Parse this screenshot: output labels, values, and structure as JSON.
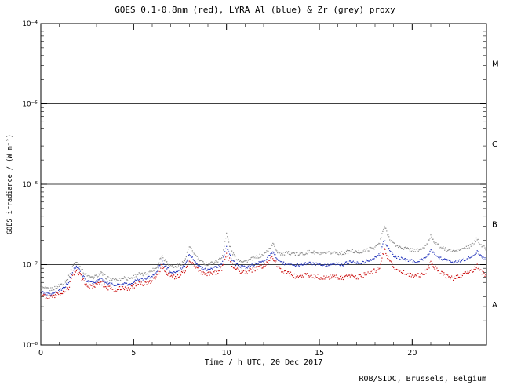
{
  "window": {
    "footer": "ROB/SIDC, Brussels, Belgium"
  },
  "chart_data": {
    "type": "scatter",
    "title": "GOES 0.1-0.8nm (red), LYRA Al (blue) & Zr (grey) proxy",
    "xlabel": "Time / h UTC, 20 Dec 2017",
    "ylabel": "GOES irradiance / (W m⁻²)",
    "x_range": [
      0,
      24
    ],
    "x_major_ticks": [
      0,
      5,
      10,
      15,
      20
    ],
    "x_minor_tick_step": 1,
    "y_scale": "log",
    "y_exp_range": [
      -8,
      -4
    ],
    "y_tick_labels": [
      "10⁻⁸",
      "10⁻⁷",
      "10⁻⁶",
      "10⁻⁵",
      "10⁻⁴"
    ],
    "hlines_wm2": [
      1e-07,
      1e-06,
      1e-05
    ],
    "flare_class_labels": [
      {
        "label": "M",
        "decade_mid_exp": -4.5
      },
      {
        "label": "C",
        "decade_mid_exp": -5.5
      },
      {
        "label": "B",
        "decade_mid_exp": -6.5
      },
      {
        "label": "A",
        "decade_mid_exp": -7.5
      }
    ],
    "legend_position": "none",
    "grid": "off",
    "sample_start_h": 0,
    "sample_step_h": 0.25,
    "value_unit": "1e-8 W m-2",
    "series": [
      {
        "name": "GOES 0.1-0.8nm",
        "color": "#cc1111",
        "noise_dex": 0.03,
        "values_1e8": [
          4.2,
          4.0,
          3.9,
          4.1,
          4.3,
          4.6,
          5.2,
          7.8,
          8.3,
          6.4,
          5.6,
          5.2,
          5.6,
          6.0,
          5.3,
          5.0,
          4.8,
          5.0,
          5.2,
          5.0,
          5.4,
          5.8,
          5.6,
          6.0,
          6.4,
          7.0,
          9.5,
          8.2,
          7.2,
          7.0,
          7.6,
          8.4,
          11.5,
          10.0,
          8.4,
          7.8,
          7.5,
          7.8,
          8.2,
          9.0,
          13.5,
          10.5,
          8.8,
          8.2,
          8.0,
          8.4,
          8.8,
          9.2,
          9.6,
          11.0,
          12.5,
          9.5,
          8.2,
          7.8,
          7.5,
          7.2,
          7.0,
          7.3,
          7.5,
          7.2,
          7.0,
          6.8,
          7.0,
          7.2,
          7.0,
          6.8,
          7.2,
          7.4,
          7.0,
          7.2,
          7.6,
          8.0,
          8.4,
          9.5,
          15.5,
          11.5,
          9.2,
          8.4,
          8.0,
          7.6,
          7.4,
          7.2,
          7.5,
          8.2,
          10.5,
          9.0,
          8.0,
          7.4,
          7.0,
          6.8,
          7.0,
          7.4,
          7.8,
          8.4,
          9.5,
          8.0,
          7.2
        ]
      },
      {
        "name": "LYRA Al proxy",
        "color": "#2233bb",
        "noise_dex": 0.018,
        "values_1e8": [
          4.6,
          4.4,
          4.3,
          4.5,
          4.8,
          5.2,
          6.0,
          8.8,
          9.4,
          7.2,
          6.3,
          5.9,
          6.3,
          6.8,
          6.0,
          5.7,
          5.5,
          5.7,
          5.9,
          5.7,
          6.1,
          6.6,
          6.4,
          6.8,
          7.3,
          8.0,
          11.0,
          9.4,
          8.2,
          8.0,
          8.7,
          9.6,
          13.5,
          11.5,
          9.6,
          8.9,
          8.6,
          8.9,
          9.4,
          10.3,
          16.5,
          12.0,
          10.1,
          9.4,
          9.2,
          9.6,
          10.1,
          10.6,
          11.0,
          12.6,
          14.5,
          11.5,
          10.5,
          10.2,
          10.0,
          9.8,
          9.8,
          10.2,
          10.5,
          10.2,
          10.0,
          9.8,
          10.0,
          10.4,
          10.2,
          10.0,
          10.5,
          10.8,
          10.4,
          10.6,
          11.0,
          11.5,
          12.0,
          13.5,
          20.0,
          15.5,
          13.0,
          12.2,
          11.8,
          11.4,
          11.2,
          11.0,
          11.4,
          12.2,
          15.0,
          13.0,
          12.0,
          11.4,
          11.0,
          10.8,
          11.0,
          11.5,
          12.0,
          12.8,
          14.5,
          12.5,
          11.5
        ]
      },
      {
        "name": "LYRA Zr proxy",
        "color": "#8c8c8c",
        "noise_dex": 0.022,
        "values_1e8": [
          5.2,
          5.0,
          4.9,
          5.1,
          5.5,
          6.0,
          7.0,
          10.0,
          10.8,
          8.3,
          7.2,
          6.8,
          7.2,
          7.8,
          7.0,
          6.6,
          6.4,
          6.6,
          6.9,
          6.6,
          7.1,
          7.7,
          7.4,
          7.9,
          8.5,
          9.3,
          13.0,
          11.0,
          9.6,
          9.3,
          10.1,
          11.2,
          16.5,
          14.0,
          11.5,
          10.5,
          10.1,
          10.5,
          11.0,
          12.2,
          24.0,
          14.8,
          12.2,
          11.3,
          11.0,
          11.5,
          12.1,
          12.7,
          13.2,
          15.2,
          18.0,
          14.5,
          13.5,
          13.8,
          14.0,
          13.6,
          13.4,
          14.0,
          14.5,
          14.0,
          13.8,
          13.5,
          13.8,
          14.2,
          14.0,
          13.7,
          14.3,
          14.8,
          14.2,
          14.5,
          15.0,
          15.8,
          16.5,
          18.5,
          30.0,
          22.0,
          18.0,
          16.8,
          16.2,
          15.6,
          15.3,
          15.0,
          15.6,
          16.8,
          23.0,
          18.5,
          16.5,
          15.6,
          15.0,
          14.7,
          15.0,
          15.8,
          16.5,
          17.6,
          21.0,
          17.0,
          15.8
        ]
      }
    ]
  }
}
